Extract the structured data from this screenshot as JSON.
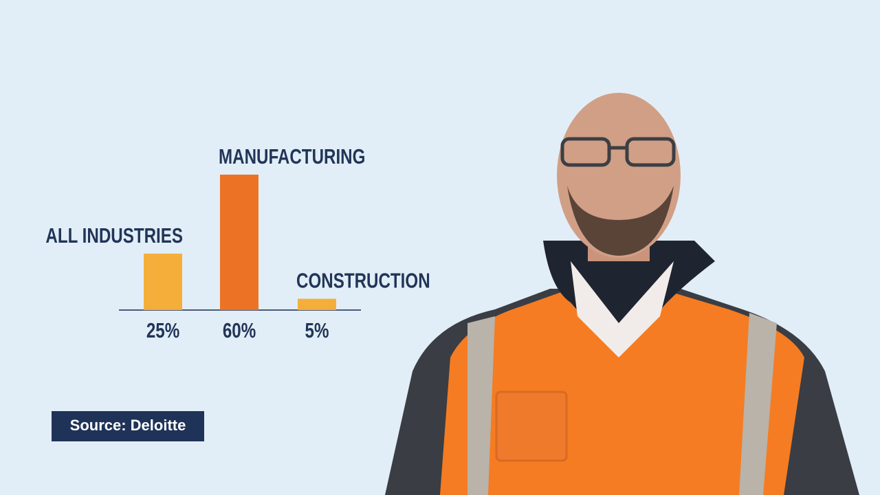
{
  "chart_data": {
    "type": "bar",
    "categories": [
      "ALL INDUSTRIES",
      "MANUFACTURING",
      "CONSTRUCTION"
    ],
    "values": [
      25,
      60,
      5
    ],
    "value_labels": [
      "25%",
      "60%",
      "5%"
    ],
    "colors": [
      "#f5ae3a",
      "#ec7326",
      "#f5ae3a"
    ],
    "source": "Source: Deloitte"
  }
}
